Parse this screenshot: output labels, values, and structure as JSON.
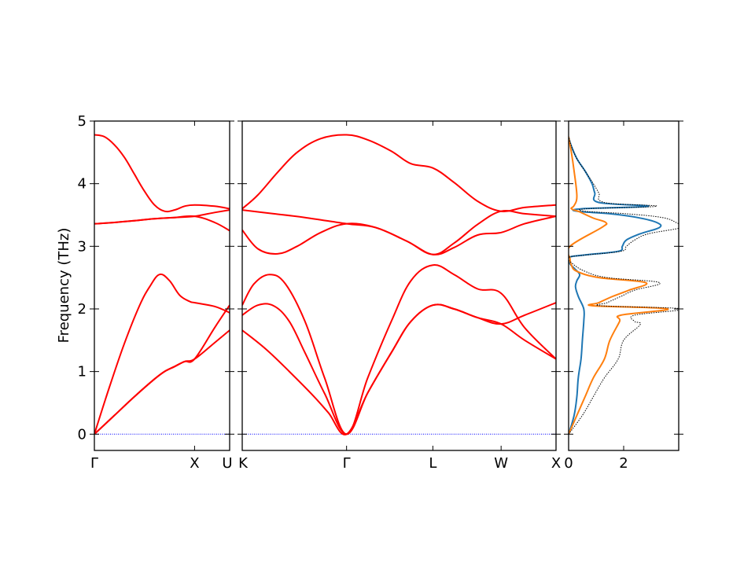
{
  "chart_data": [
    {
      "type": "line",
      "panel": "band-structure-gamma-x-u",
      "ylabel": "Frequency (THz)",
      "ylim": [
        -0.26,
        5
      ],
      "yticks": [
        0,
        1,
        2,
        3,
        4,
        5
      ],
      "xticks": [
        {
          "x": 0,
          "label": "Γ"
        },
        {
          "x": 1,
          "label": "X"
        },
        {
          "x": 1.35,
          "label": "U"
        }
      ],
      "xlim": [
        0,
        1.35
      ],
      "zero_line_color": "#0000ff",
      "line_color": "#ff0000",
      "series": [
        {
          "x": [
            0,
            0.2,
            0.4,
            0.6,
            0.7,
            0.8,
            0.9,
            1.0,
            1.2,
            1.35
          ],
          "values": [
            0,
            0.3,
            0.6,
            0.88,
            1.0,
            1.08,
            1.16,
            1.2,
            1.46,
            1.66
          ]
        },
        {
          "x": [
            0,
            0.2,
            0.4,
            0.6,
            0.7,
            0.8,
            0.9,
            1.0,
            1.2,
            1.35
          ],
          "values": [
            0,
            0.3,
            0.6,
            0.88,
            1.0,
            1.08,
            1.16,
            1.2,
            1.7,
            2.06
          ]
        },
        {
          "x": [
            0,
            0.15,
            0.3,
            0.45,
            0.55,
            0.65,
            0.75,
            0.85,
            0.95,
            1.0,
            1.2,
            1.35
          ],
          "values": [
            0,
            0.75,
            1.45,
            2.05,
            2.35,
            2.55,
            2.45,
            2.22,
            2.12,
            2.1,
            2.04,
            1.94
          ]
        },
        {
          "x": [
            0,
            0.2,
            0.4,
            0.6,
            0.8,
            1.0,
            1.2,
            1.35
          ],
          "values": [
            3.36,
            3.38,
            3.41,
            3.44,
            3.46,
            3.48,
            3.54,
            3.58
          ]
        },
        {
          "x": [
            0,
            0.2,
            0.4,
            0.6,
            0.8,
            1.0,
            1.2,
            1.35
          ],
          "values": [
            3.36,
            3.38,
            3.41,
            3.44,
            3.46,
            3.48,
            3.38,
            3.25
          ]
        },
        {
          "x": [
            0,
            0.1,
            0.2,
            0.3,
            0.4,
            0.5,
            0.6,
            0.7,
            0.8,
            0.9,
            1.0,
            1.2,
            1.35
          ],
          "values": [
            4.78,
            4.75,
            4.62,
            4.42,
            4.15,
            3.88,
            3.66,
            3.56,
            3.58,
            3.64,
            3.66,
            3.64,
            3.6
          ]
        }
      ]
    },
    {
      "type": "line",
      "panel": "band-structure-k-gamma-l-w-x",
      "ylim": [
        -0.26,
        5
      ],
      "xlim": [
        0,
        4
      ],
      "xticks": [
        {
          "x": 0,
          "label": "K"
        },
        {
          "x": 1.33,
          "label": "Γ"
        },
        {
          "x": 2.43,
          "label": "L"
        },
        {
          "x": 3.3,
          "label": "W"
        },
        {
          "x": 4,
          "label": "X"
        }
      ],
      "zero_line_color": "#0000ff",
      "line_color": "#ff0000",
      "series": [
        {
          "x": [
            0,
            0.3,
            0.6,
            0.9,
            1.1,
            1.33,
            1.6,
            1.9,
            2.15,
            2.43,
            2.7,
            3.0,
            3.3,
            3.6,
            4.0
          ],
          "values": [
            1.66,
            1.36,
            1.0,
            0.62,
            0.34,
            0,
            0.66,
            1.3,
            1.8,
            2.06,
            2.0,
            1.86,
            1.76,
            1.5,
            1.2
          ]
        },
        {
          "x": [
            0,
            0.2,
            0.4,
            0.6,
            0.8,
            1.05,
            1.33,
            1.6,
            1.9,
            2.15,
            2.43,
            2.7,
            3.0,
            3.3,
            3.6,
            4.0
          ],
          "values": [
            1.9,
            2.06,
            2.05,
            1.8,
            1.3,
            0.65,
            0,
            0.66,
            1.3,
            1.8,
            2.06,
            2.0,
            1.86,
            1.76,
            1.9,
            2.1
          ]
        },
        {
          "x": [
            0,
            0.15,
            0.35,
            0.55,
            0.8,
            1.05,
            1.33,
            1.6,
            1.9,
            2.15,
            2.43,
            2.7,
            3.0,
            3.3,
            3.6,
            4.0
          ],
          "values": [
            2.06,
            2.4,
            2.55,
            2.4,
            1.8,
            0.9,
            0,
            0.9,
            1.8,
            2.45,
            2.7,
            2.55,
            2.32,
            2.25,
            1.7,
            1.2
          ]
        },
        {
          "x": [
            0,
            0.2,
            0.45,
            0.7,
            1.0,
            1.33,
            1.7,
            2.1,
            2.43,
            2.7,
            3.0,
            3.3,
            3.6,
            4.0
          ],
          "values": [
            3.26,
            2.96,
            2.88,
            3.0,
            3.22,
            3.36,
            3.3,
            3.08,
            2.87,
            2.98,
            3.18,
            3.22,
            3.36,
            3.48
          ]
        },
        {
          "x": [
            0,
            0.4,
            0.8,
            1.33,
            1.7,
            2.1,
            2.43,
            2.7,
            3.0,
            3.3,
            3.6,
            4.0
          ],
          "values": [
            3.58,
            3.52,
            3.46,
            3.36,
            3.3,
            3.08,
            2.87,
            3.05,
            3.35,
            3.56,
            3.52,
            3.48
          ]
        },
        {
          "x": [
            0,
            0.2,
            0.45,
            0.7,
            1.0,
            1.33,
            1.6,
            1.9,
            2.15,
            2.43,
            2.7,
            3.0,
            3.3,
            3.6,
            4.0
          ],
          "values": [
            3.6,
            3.82,
            4.18,
            4.5,
            4.72,
            4.78,
            4.7,
            4.52,
            4.32,
            4.25,
            4.02,
            3.72,
            3.56,
            3.62,
            3.66
          ]
        }
      ]
    },
    {
      "type": "line",
      "panel": "density-of-states",
      "xlim": [
        0,
        4
      ],
      "ylim": [
        -0.26,
        5
      ],
      "xticks": [
        {
          "x": 0,
          "label": "0"
        },
        {
          "x": 2,
          "label": "2"
        }
      ],
      "series": [
        {
          "color": "#1f77b4",
          "style": "solid",
          "freq": [
            0,
            0.3,
            0.6,
            0.9,
            1.2,
            1.5,
            1.8,
            2.0,
            2.2,
            2.35,
            2.45,
            2.55,
            2.65,
            2.72,
            2.82,
            2.86,
            2.92,
            3.0,
            3.1,
            3.2,
            3.3,
            3.38,
            3.46,
            3.52,
            3.56,
            3.6,
            3.64,
            3.7,
            3.85,
            4.0,
            4.2,
            4.4,
            4.6,
            4.75
          ],
          "values": [
            0,
            0.2,
            0.3,
            0.35,
            0.45,
            0.5,
            0.55,
            0.55,
            0.35,
            0.25,
            0.3,
            0.4,
            0.2,
            0.05,
            0,
            0.55,
            1.8,
            1.95,
            2.1,
            2.6,
            3.3,
            3.2,
            2.5,
            1.5,
            0.3,
            0.5,
            2.9,
            1.1,
            0.95,
            0.85,
            0.6,
            0.3,
            0.1,
            0
          ]
        },
        {
          "color": "#ff7f0e",
          "style": "solid",
          "freq": [
            0,
            0.3,
            0.6,
            0.9,
            1.2,
            1.5,
            1.8,
            1.9,
            2.0,
            2.05,
            2.1,
            2.2,
            2.3,
            2.42,
            2.5,
            2.6,
            2.7,
            2.8,
            3.0,
            3.3,
            3.38,
            3.45,
            3.55,
            3.6,
            3.65,
            3.8,
            4.2,
            4.5,
            4.75
          ],
          "values": [
            0,
            0.3,
            0.6,
            0.9,
            1.3,
            1.5,
            1.85,
            1.9,
            3.6,
            0.9,
            1.1,
            1.6,
            2.2,
            2.8,
            1.1,
            0.3,
            0.1,
            0.05,
            0.05,
            1.2,
            1.35,
            0.9,
            0.4,
            0.1,
            0.2,
            0.3,
            0.2,
            0.1,
            0
          ]
        },
        {
          "color": "#000000",
          "style": "dotted",
          "freq": [
            0,
            0.3,
            0.6,
            0.9,
            1.2,
            1.5,
            1.75,
            1.8,
            1.9,
            2.0,
            2.05,
            2.1,
            2.2,
            2.3,
            2.42,
            2.5,
            2.6,
            2.72,
            2.82,
            2.86,
            2.92,
            3.0,
            3.1,
            3.2,
            3.3,
            3.38,
            3.46,
            3.52,
            3.56,
            3.6,
            3.64,
            3.7,
            3.85,
            4.0,
            4.2,
            4.4,
            4.6,
            4.75
          ],
          "values": [
            0,
            0.5,
            0.9,
            1.3,
            1.8,
            2.0,
            2.6,
            2.4,
            2.4,
            4.1,
            1.2,
            1.4,
            1.9,
            2.4,
            3.3,
            1.4,
            0.6,
            0.15,
            0,
            0.6,
            1.9,
            2.1,
            2.4,
            2.9,
            4.1,
            3.9,
            3.4,
            2.1,
            0.6,
            0.7,
            3.2,
            1.3,
            1.1,
            0.9,
            0.6,
            0.3,
            0.1,
            0
          ]
        }
      ]
    }
  ]
}
